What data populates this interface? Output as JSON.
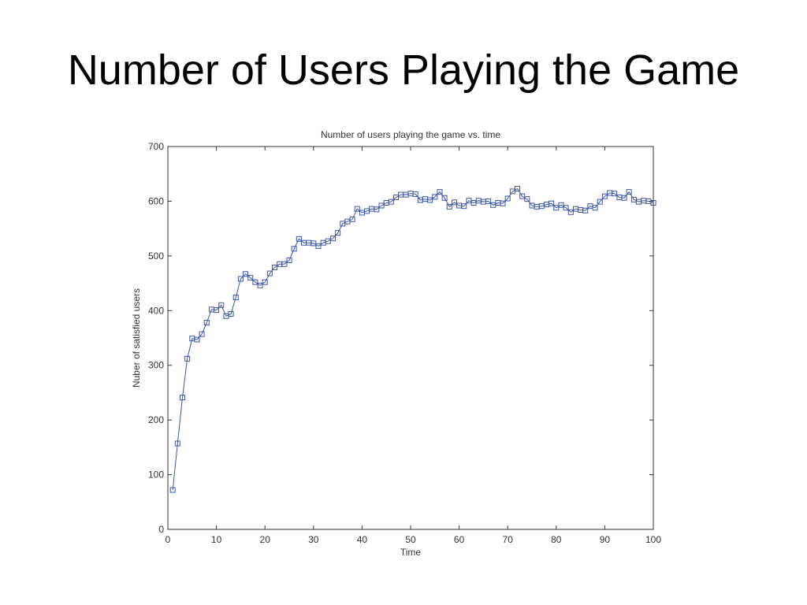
{
  "slide": {
    "title": "Number of Users Playing the Game"
  },
  "chart_data": {
    "type": "line",
    "title": "Number of users playing the game vs. time",
    "xlabel": "Time",
    "ylabel": "Nuber of satisfied users",
    "xlim": [
      0,
      100
    ],
    "ylim": [
      0,
      700
    ],
    "xticks": [
      0,
      10,
      20,
      30,
      40,
      50,
      60,
      70,
      80,
      90,
      100
    ],
    "yticks": [
      0,
      100,
      200,
      300,
      400,
      500,
      600,
      700
    ],
    "grid": false,
    "marker": "square",
    "line_color": "#3a55a5",
    "series": [
      {
        "x": [
          1,
          2,
          3,
          4,
          5,
          6,
          7,
          8,
          9,
          10,
          11,
          12,
          13,
          14,
          15,
          16,
          17,
          18,
          19,
          20,
          21,
          22,
          23,
          24,
          25,
          26,
          27,
          28,
          29,
          30,
          31,
          32,
          33,
          34,
          35,
          36,
          37,
          38,
          39,
          40,
          41,
          42,
          43,
          44,
          45,
          46,
          47,
          48,
          49,
          50,
          51,
          52,
          53,
          54,
          55,
          56,
          57,
          58,
          59,
          60,
          61,
          62,
          63,
          64,
          65,
          66,
          67,
          68,
          69,
          70,
          71,
          72,
          73,
          74,
          75,
          76,
          77,
          78,
          79,
          80,
          81,
          82,
          83,
          84,
          85,
          86,
          87,
          88,
          89,
          90,
          91,
          92,
          93,
          94,
          95,
          96,
          97,
          98,
          99,
          100
        ],
        "y": [
          72,
          157,
          241,
          312,
          349,
          347,
          357,
          378,
          402,
          401,
          410,
          390,
          394,
          424,
          458,
          467,
          460,
          452,
          446,
          452,
          468,
          479,
          485,
          485,
          492,
          513,
          531,
          524,
          524,
          523,
          518,
          524,
          527,
          532,
          542,
          559,
          563,
          567,
          586,
          579,
          582,
          586,
          585,
          592,
          597,
          599,
          607,
          612,
          612,
          614,
          613,
          602,
          604,
          602,
          608,
          617,
          606,
          590,
          598,
          592,
          591,
          601,
          597,
          601,
          599,
          600,
          593,
          597,
          596,
          605,
          618,
          623,
          609,
          604,
          592,
          590,
          591,
          594,
          596,
          588,
          593,
          588,
          580,
          586,
          584,
          583,
          591,
          588,
          599,
          609,
          615,
          614,
          607,
          606,
          617,
          603,
          599,
          601,
          600,
          597
        ]
      }
    ]
  }
}
